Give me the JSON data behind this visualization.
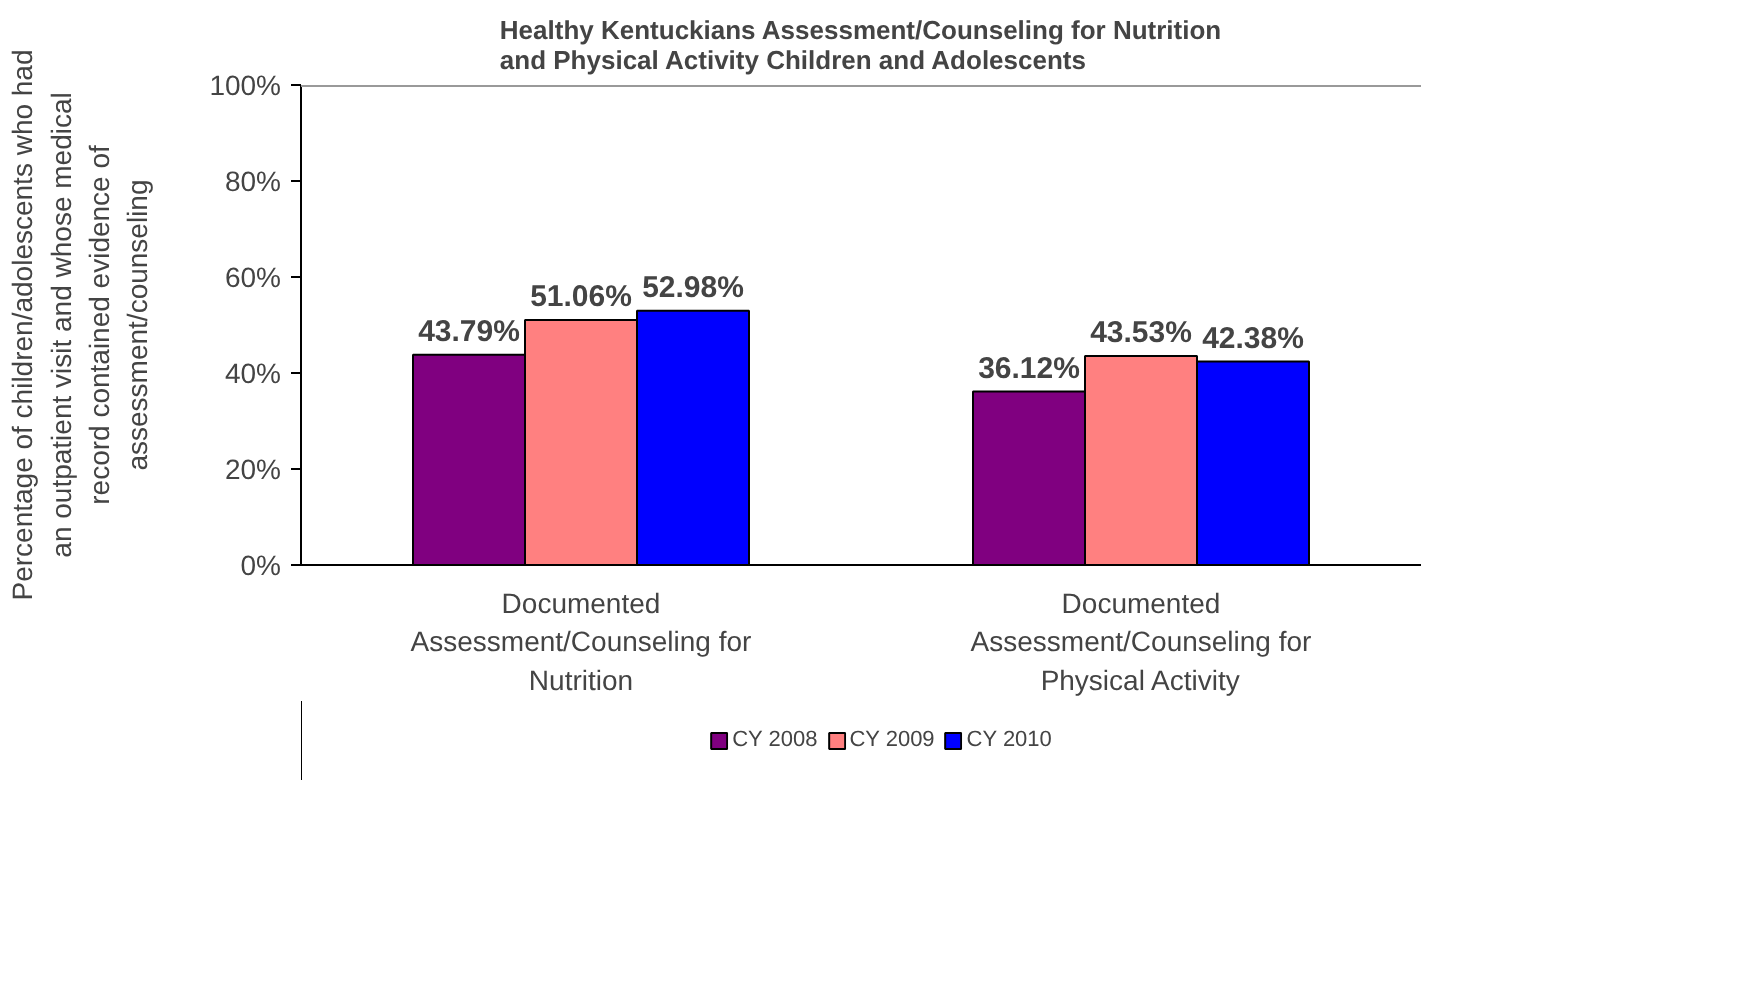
{
  "chart_data": {
    "type": "bar",
    "title": "Healthy Kentuckians Assessment/Counseling for Nutrition and Physical Activity Children and Adolescents",
    "ylabel": "Percentage of children/adolescents who had an outpatient visit and whose medical record contained evidence of assessment/counseling",
    "categories": [
      "Documented Assessment/Counseling for Nutrition",
      "Documented Assessment/Counseling for Physical Activity"
    ],
    "series": [
      {
        "name": "CY 2008",
        "color": "#800080",
        "values": [
          43.79,
          36.12
        ],
        "value_labels": [
          "43.79%",
          "36.12%"
        ]
      },
      {
        "name": "CY 2009",
        "color": "#ff8080",
        "values": [
          51.06,
          43.53
        ],
        "value_labels": [
          "51.06%",
          "43.53%"
        ]
      },
      {
        "name": "CY 2010",
        "color": "#0000ff",
        "values": [
          52.98,
          42.38
        ],
        "value_labels": [
          "52.98%",
          "42.38%"
        ]
      }
    ],
    "ylim": [
      0,
      100
    ],
    "yticks": [
      {
        "value": 0,
        "label": "0%"
      },
      {
        "value": 20,
        "label": "20%"
      },
      {
        "value": 40,
        "label": "40%"
      },
      {
        "value": 60,
        "label": "60%"
      },
      {
        "value": 80,
        "label": "80%"
      },
      {
        "value": 100,
        "label": "100%"
      }
    ],
    "grid": false,
    "legend": "bottom"
  }
}
